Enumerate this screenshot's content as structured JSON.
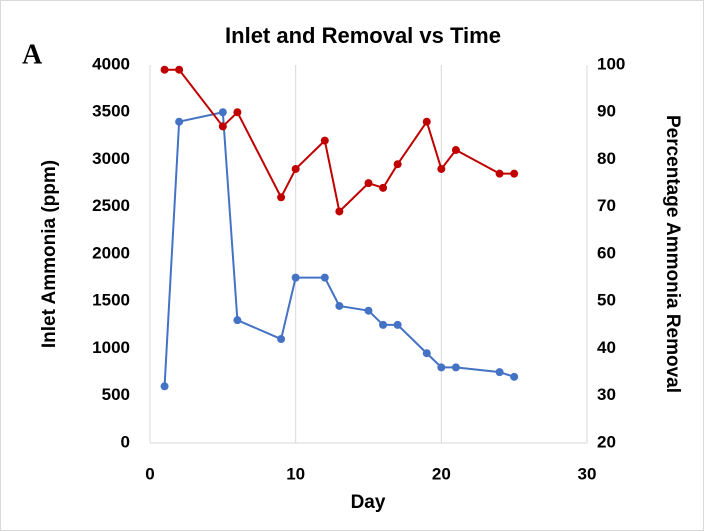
{
  "chart_data": {
    "type": "line",
    "panel_label": "A",
    "title": "Inlet and Removal vs Time",
    "x_label": "Day",
    "y_label": "Inlet Ammonia (ppm)",
    "y2_label": "Percentage Ammonia Removal",
    "x": [
      1,
      2,
      5,
      6,
      9,
      10,
      12,
      13,
      15,
      16,
      17,
      19,
      20,
      21,
      24,
      25
    ],
    "series": [
      {
        "name": "Inlet Ammonia",
        "color": "#4472c4",
        "axis": "y",
        "values": [
          600,
          3400,
          3500,
          1300,
          1100,
          1750,
          1750,
          1450,
          1400,
          1250,
          1250,
          950,
          800,
          800,
          750,
          700
        ]
      },
      {
        "name": "Percentage Ammonia Removal",
        "color": "#c00000",
        "axis": "y2",
        "values": [
          99,
          99,
          87,
          90,
          72,
          78,
          84,
          69,
          75,
          74,
          79,
          88,
          78,
          82,
          77,
          77
        ]
      }
    ],
    "xlim": [
      0,
      30
    ],
    "xticks": [
      0,
      10,
      20,
      30
    ],
    "ylim": [
      0,
      4000
    ],
    "yticks": [
      0,
      500,
      1000,
      1500,
      2000,
      2500,
      3000,
      3500,
      4000
    ],
    "y2lim": [
      20,
      100
    ],
    "y2ticks": [
      20,
      30,
      40,
      50,
      60,
      70,
      80,
      90,
      100
    ],
    "grid": "x"
  }
}
